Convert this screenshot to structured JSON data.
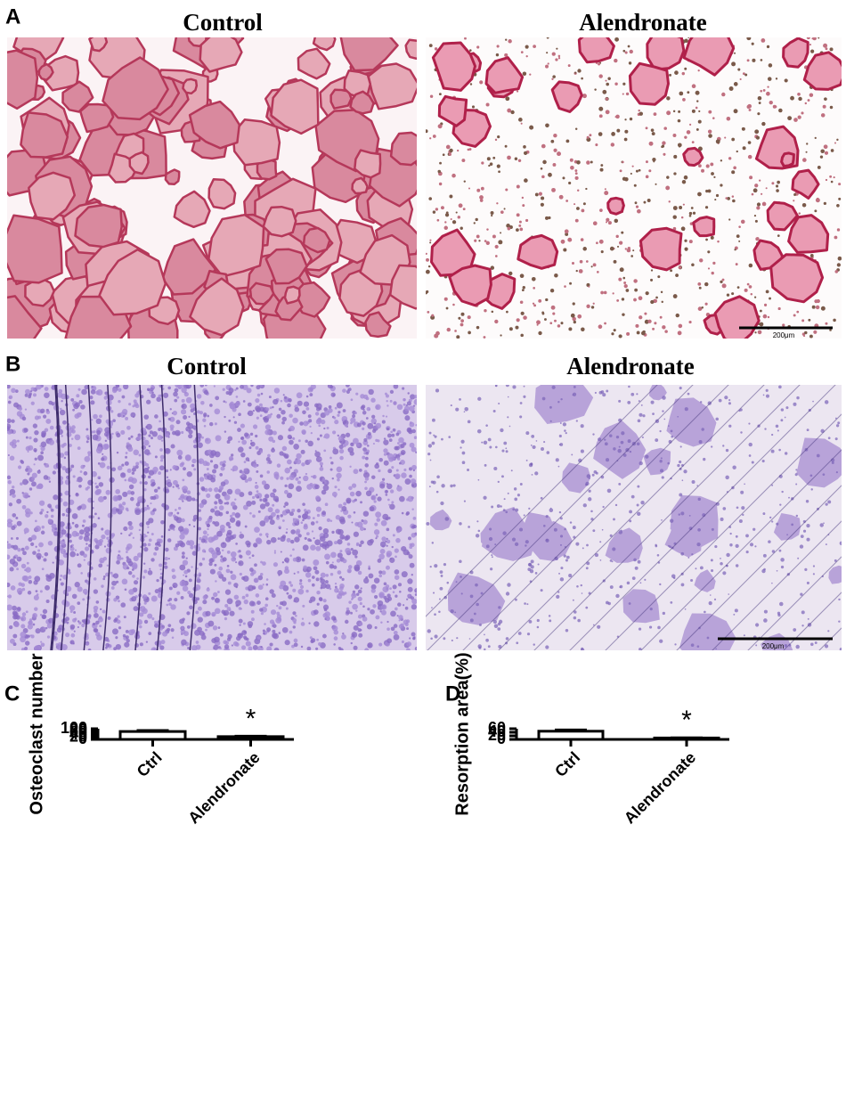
{
  "panels": {
    "a": {
      "label": "A",
      "left_title": "Control",
      "right_title": "Alendronate",
      "scale": "200μm"
    },
    "b": {
      "label": "B",
      "left_title": "Control",
      "right_title": "Alendronate",
      "scale": "200μm"
    }
  },
  "chart_data": [
    {
      "type": "bar",
      "panel": "C",
      "ylabel": "Osteoclast number",
      "categories": [
        "Ctrl",
        "Alendronate"
      ],
      "values": [
        74,
        26
      ],
      "errors": [
        9,
        4.5
      ],
      "colors": [
        "#ffffff",
        "#000000"
      ],
      "ylim": [
        0,
        100
      ],
      "yticks": [
        0,
        20,
        40,
        60,
        80,
        100
      ],
      "annotations": [
        null,
        "*"
      ]
    },
    {
      "type": "bar",
      "panel": "D",
      "ylabel": "Resorption area(%)",
      "categories": [
        "Ctrl",
        "Alendronate"
      ],
      "values": [
        46,
        8
      ],
      "errors": [
        7,
        1
      ],
      "colors": [
        "#ffffff",
        "#000000"
      ],
      "ylim": [
        0,
        60
      ],
      "yticks": [
        0,
        20,
        40,
        60
      ],
      "annotations": [
        null,
        "*"
      ]
    }
  ]
}
